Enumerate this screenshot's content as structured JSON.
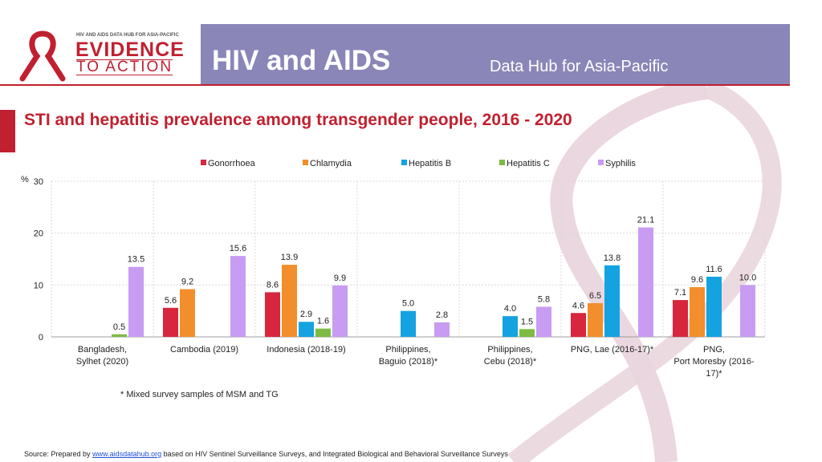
{
  "header": {
    "logo_small": "HIV AND AIDS DATA HUB FOR ASIA-PACIFIC",
    "logo_main": "EVIDENCE",
    "logo_sub": "TO ACTION",
    "title": "HIV and AIDS",
    "subtitle": "Data Hub for Asia-Pacific"
  },
  "page_title": "STI and hepatitis prevalence among transgender people, 2016 - 2020",
  "footnote": "* Mixed survey samples of MSM and TG",
  "source": {
    "prefix": "Source: Prepared by",
    "link": "www.aidsdatahub.org",
    "suffix": "based on HIV Sentinel Surveillance Surveys, and Integrated Biological and Behavioral Surveillance Surveys"
  },
  "colors": {
    "header_bg": "#8a86b8",
    "accent_red": "#c0202f",
    "gonorrhoea": "#d7263d",
    "chlamydia": "#f28e2b",
    "hepatitis_b": "#14a3e0",
    "hepatitis_c": "#7dbb42",
    "syphilis": "#c79cf2"
  },
  "chart_data": {
    "type": "bar",
    "title": "STI and hepatitis prevalence among transgender people, 2016 - 2020",
    "ylabel": "%",
    "xlabel": "",
    "ylim": [
      0,
      30
    ],
    "yticks": [
      "0",
      "10",
      "20",
      "30"
    ],
    "grid": true,
    "legend_position": "top",
    "categories": [
      [
        "Bangladesh,",
        "Sylhet (2020)"
      ],
      [
        "Cambodia (2019)"
      ],
      [
        "Indonesia (2018-19)"
      ],
      [
        "Philippines,",
        "Baguio (2018)*"
      ],
      [
        "Philippines,",
        "Cebu (2018)*"
      ],
      [
        "PNG, Lae (2016-17)*"
      ],
      [
        "PNG,",
        "Port Moresby (2016-",
        "17)*"
      ]
    ],
    "series": [
      {
        "name": "Gonorrhoea",
        "color": "#d7263d",
        "values": [
          null,
          5.6,
          8.6,
          null,
          null,
          4.6,
          7.1
        ],
        "labels": [
          "",
          "5.6",
          "8.6",
          "",
          "",
          "4.6",
          "7.1"
        ]
      },
      {
        "name": "Chlamydia",
        "color": "#f28e2b",
        "values": [
          null,
          9.2,
          13.9,
          null,
          null,
          6.5,
          9.6
        ],
        "labels": [
          "",
          "9.2",
          "13.9",
          "",
          "",
          "6.5",
          "9.6"
        ]
      },
      {
        "name": "Hepatitis B",
        "color": "#14a3e0",
        "values": [
          null,
          null,
          2.9,
          5.0,
          4.0,
          13.8,
          11.6
        ],
        "labels": [
          "",
          "",
          "2.9",
          "5.0",
          "4.0",
          "13.8",
          "11.6"
        ]
      },
      {
        "name": "Hepatitis C",
        "color": "#7dbb42",
        "values": [
          0.5,
          null,
          1.6,
          null,
          1.5,
          null,
          null
        ],
        "labels": [
          "0.5",
          "",
          "1.6",
          "",
          "1.5",
          "",
          ""
        ]
      },
      {
        "name": "Syphilis",
        "color": "#c79cf2",
        "values": [
          13.5,
          15.6,
          9.9,
          2.8,
          5.8,
          21.1,
          10.0
        ],
        "labels": [
          "13.5",
          "15.6",
          "9.9",
          "2.8",
          "5.8",
          "21.1",
          "10.0"
        ]
      }
    ]
  }
}
